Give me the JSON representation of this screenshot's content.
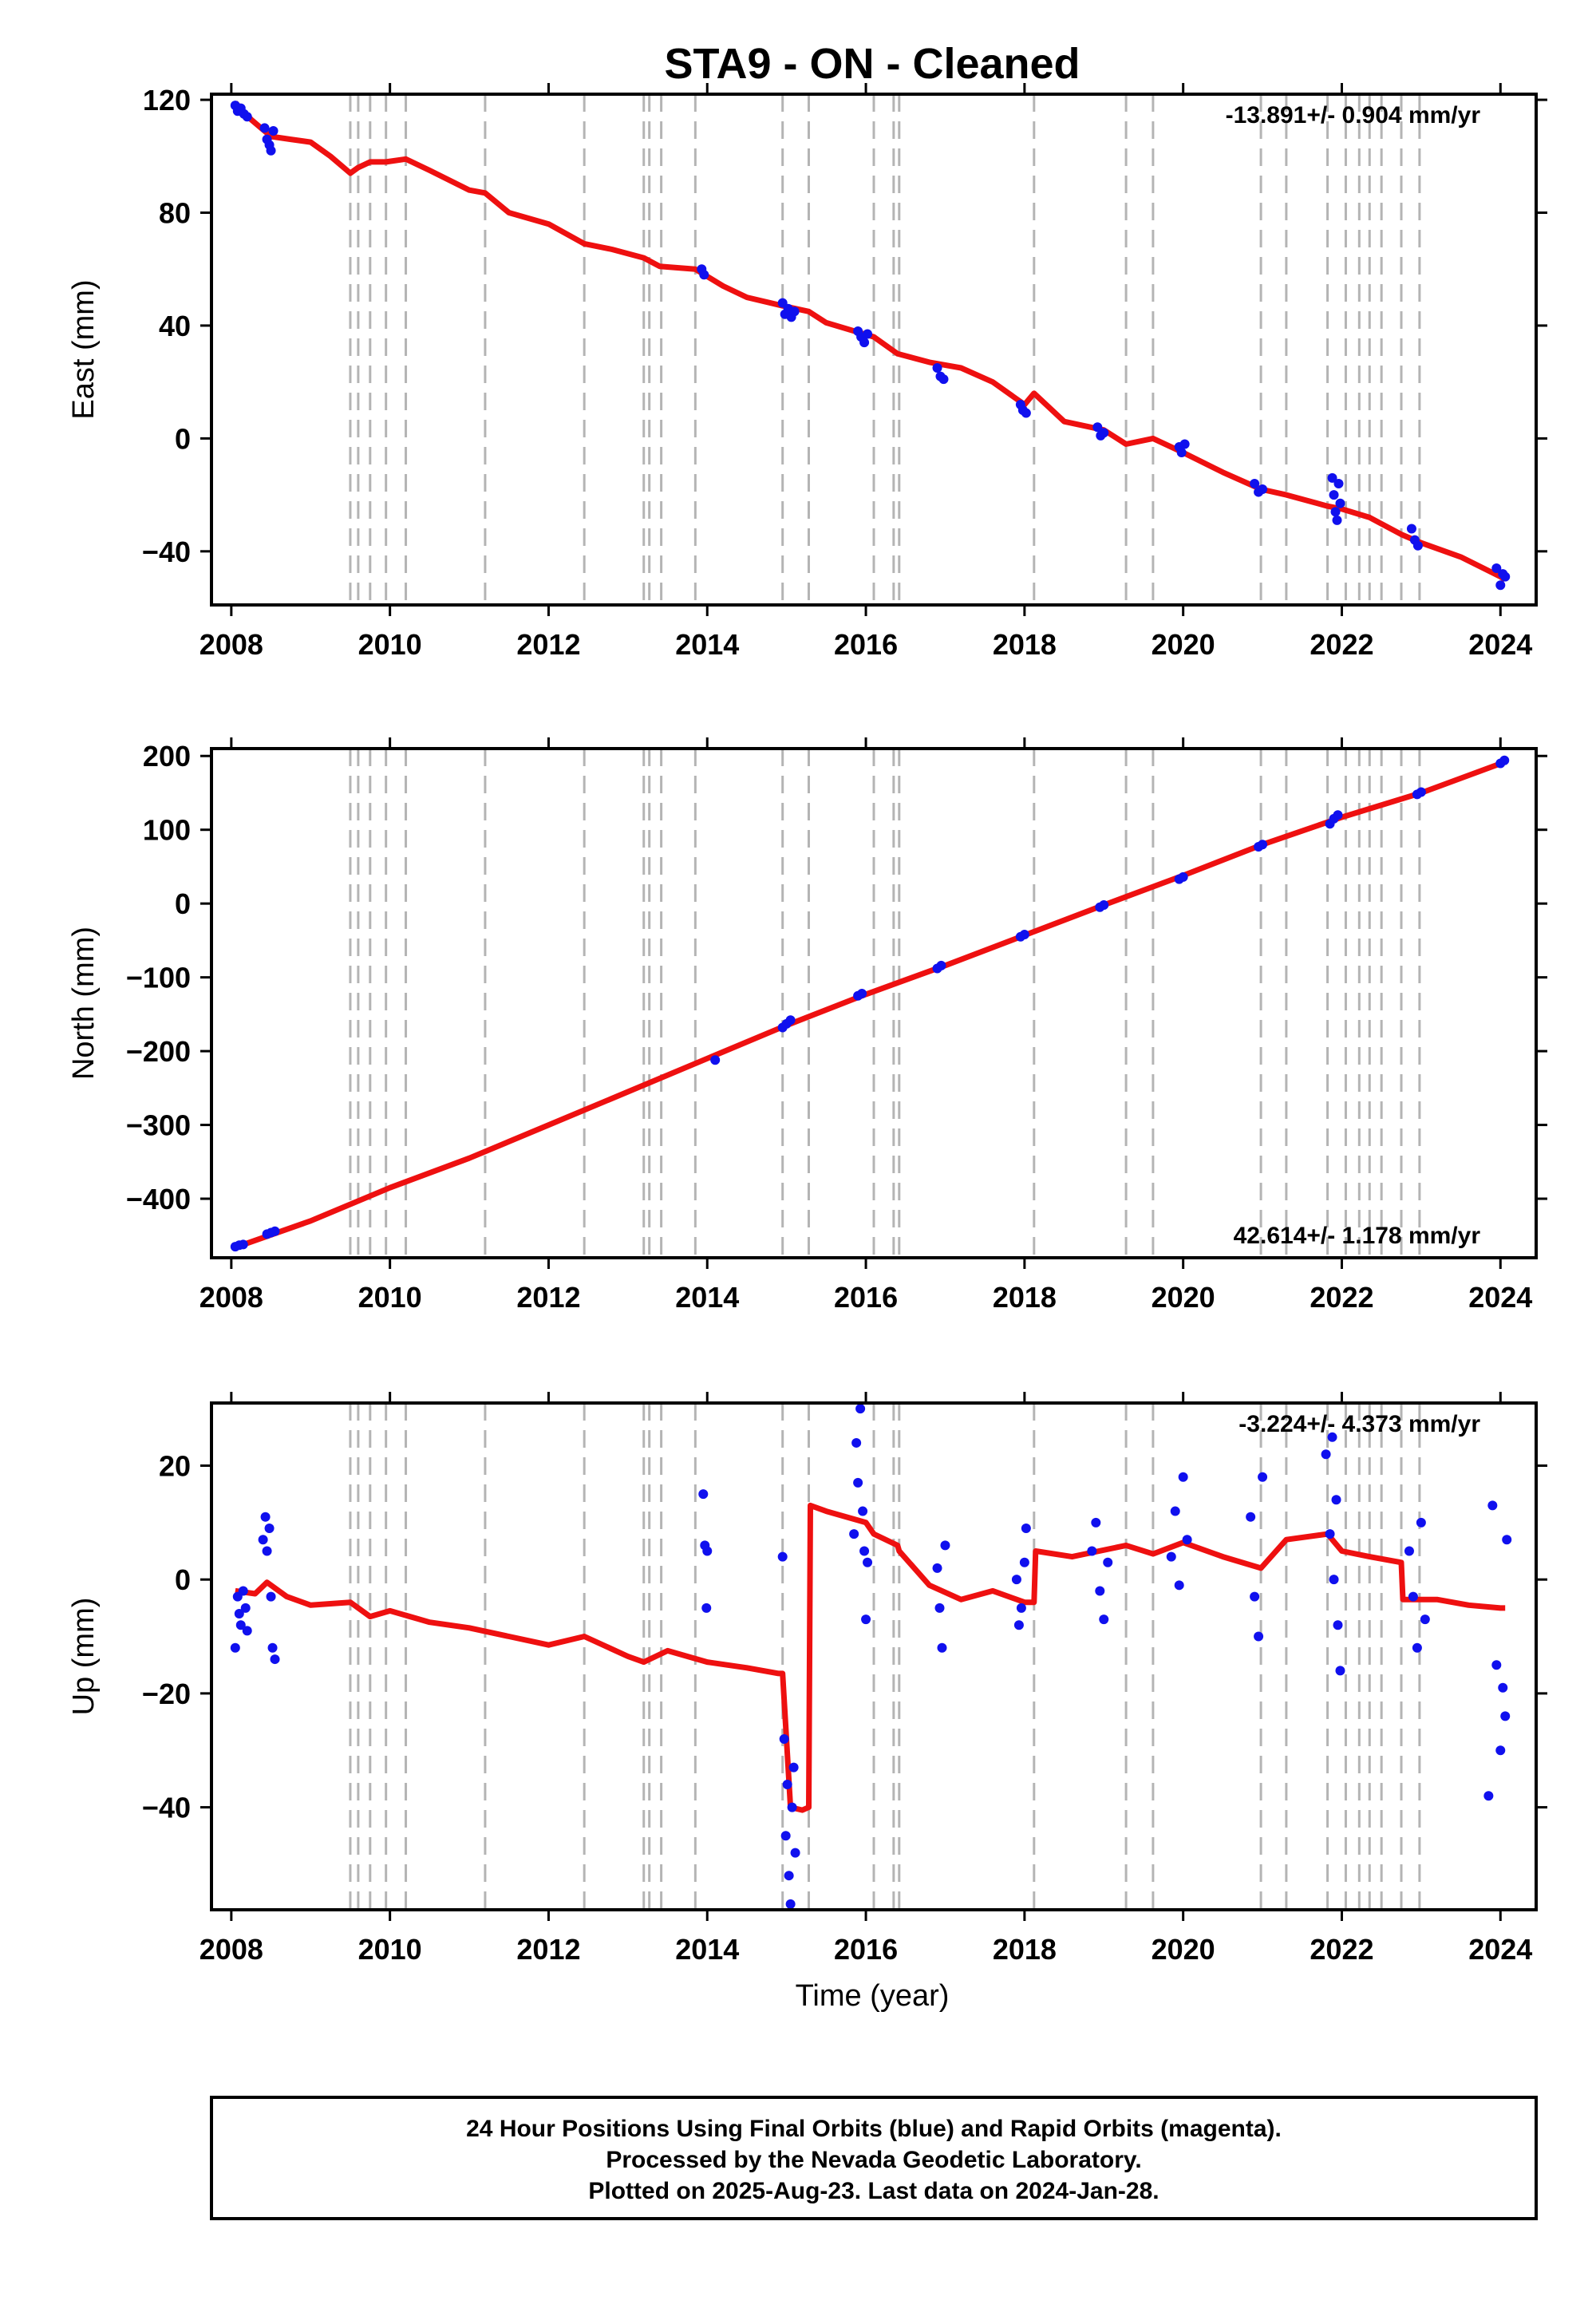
{
  "title": "STA9  - ON - Cleaned",
  "xlabel": "Time (year)",
  "colors": {
    "final_orbits": "#1010ee",
    "model": "#ee1010",
    "offsets": "#b4b4b4"
  },
  "footer": {
    "lines": [
      "24 Hour Positions Using Final Orbits (blue) and Rapid Orbits (magenta).",
      "Processed by the Nevada Geodetic Laboratory.",
      "Plotted on 2025-Aug-23. Last data on 2024-Jan-28."
    ]
  },
  "chart_data": [
    {
      "type": "scatter",
      "id": "east",
      "ylabel": "East (mm)",
      "xlim": [
        2007.75,
        2024.45
      ],
      "ylim": [
        -59,
        122
      ],
      "xticks": [
        2008,
        2010,
        2012,
        2014,
        2016,
        2018,
        2020,
        2022,
        2024
      ],
      "yticks": [
        -40,
        0,
        40,
        80,
        120
      ],
      "rate_label": "-13.891+/- 0.904 mm/yr",
      "rate_position": "top-right",
      "offset_lines": [
        2009.5,
        2009.6,
        2009.75,
        2009.95,
        2010.2,
        2011.2,
        2012.45,
        2013.2,
        2013.27,
        2013.42,
        2013.85,
        2014.95,
        2015.28,
        2016.1,
        2016.35,
        2016.42,
        2018.12,
        2019.28,
        2019.62,
        2020.98,
        2021.3,
        2021.82,
        2022.05,
        2022.22,
        2022.35,
        2022.5,
        2022.75,
        2022.98
      ],
      "series": [
        {
          "kind": "points",
          "x": [
            2008.05,
            2008.08,
            2008.12,
            2008.16,
            2008.2,
            2008.42,
            2008.45,
            2008.48,
            2008.5,
            2008.53,
            2013.93,
            2013.96,
            2014.95,
            2014.98,
            2015.02,
            2015.06,
            2015.1,
            2015.9,
            2015.94,
            2015.98,
            2016.02,
            2016.9,
            2016.94,
            2016.98,
            2017.95,
            2017.98,
            2018.02,
            2018.92,
            2018.96,
            2019.0,
            2019.95,
            2019.98,
            2020.02,
            2020.9,
            2020.95,
            2021.0,
            2021.88,
            2021.9,
            2021.92,
            2021.94,
            2021.96,
            2021.98,
            2022.88,
            2022.92,
            2022.96,
            2023.95,
            2024.0,
            2024.03,
            2024.06
          ],
          "y": [
            118,
            116,
            117,
            115,
            114,
            110,
            106,
            104,
            102,
            109,
            60,
            58,
            48,
            44,
            46,
            43,
            45,
            38,
            36,
            34,
            37,
            25,
            22,
            21,
            12,
            10,
            9,
            4,
            1,
            2,
            -3,
            -5,
            -2,
            -16,
            -19,
            -18,
            -14,
            -20,
            -26,
            -29,
            -16,
            -23,
            -32,
            -36,
            -38,
            -46,
            -52,
            -48,
            -49
          ]
        },
        {
          "kind": "line",
          "x": [
            2008.05,
            2008.25,
            2008.5,
            2008.75,
            2009.0,
            2009.25,
            2009.5,
            2009.6,
            2009.75,
            2009.95,
            2010.2,
            2010.5,
            2011.0,
            2011.2,
            2011.5,
            2012.0,
            2012.45,
            2012.8,
            2013.2,
            2013.4,
            2013.85,
            2014.2,
            2014.5,
            2014.95,
            2015.28,
            2015.5,
            2016.1,
            2016.4,
            2016.8,
            2017.2,
            2017.6,
            2018.0,
            2018.12,
            2018.5,
            2019.0,
            2019.28,
            2019.62,
            2020.0,
            2020.5,
            2020.98,
            2021.3,
            2021.82,
            2022.0,
            2022.35,
            2022.75,
            2023.0,
            2023.5,
            2024.0,
            2024.06
          ],
          "y": [
            119,
            113,
            107,
            106,
            105,
            100,
            94,
            96,
            98,
            98,
            99,
            95,
            88,
            87,
            80,
            76,
            69,
            67,
            64,
            61,
            60,
            54,
            50,
            47,
            45,
            41,
            36,
            30,
            27,
            25,
            20,
            12,
            16,
            6,
            3,
            -2,
            0,
            -5,
            -12,
            -18,
            -20,
            -24,
            -25,
            -28,
            -34,
            -37,
            -42,
            -49,
            -50
          ]
        }
      ]
    },
    {
      "type": "scatter",
      "id": "north",
      "ylabel": "North (mm)",
      "xlim": [
        2007.75,
        2024.45
      ],
      "ylim": [
        -480,
        210
      ],
      "xticks": [
        2008,
        2010,
        2012,
        2014,
        2016,
        2018,
        2020,
        2022,
        2024
      ],
      "yticks": [
        -400,
        -300,
        -200,
        -100,
        0,
        100,
        200
      ],
      "rate_label": "42.614+/- 1.178 mm/yr",
      "rate_position": "bottom-right",
      "offset_lines": [
        2009.5,
        2009.6,
        2009.75,
        2009.95,
        2010.2,
        2011.2,
        2012.45,
        2013.2,
        2013.27,
        2013.42,
        2013.85,
        2014.95,
        2015.28,
        2016.1,
        2016.35,
        2016.42,
        2018.12,
        2019.28,
        2019.62,
        2020.98,
        2021.3,
        2021.82,
        2022.05,
        2022.22,
        2022.35,
        2022.5,
        2022.75,
        2022.98
      ],
      "series": [
        {
          "kind": "points",
          "x": [
            2008.05,
            2008.1,
            2008.15,
            2008.45,
            2008.5,
            2008.55,
            2014.1,
            2014.95,
            2015.0,
            2015.05,
            2015.9,
            2015.95,
            2016.9,
            2016.95,
            2017.95,
            2018.0,
            2018.95,
            2019.0,
            2019.95,
            2020.0,
            2020.95,
            2021.0,
            2021.85,
            2021.9,
            2021.95,
            2022.95,
            2023.0,
            2024.0,
            2024.05
          ],
          "y": [
            -465,
            -463,
            -462,
            -448,
            -446,
            -444,
            -212,
            -168,
            -163,
            -158,
            -125,
            -122,
            -88,
            -84,
            -45,
            -42,
            -5,
            -2,
            33,
            36,
            77,
            80,
            108,
            115,
            120,
            148,
            151,
            190,
            194
          ]
        },
        {
          "kind": "line",
          "x": [
            2008.05,
            2009.0,
            2010.0,
            2011.0,
            2012.0,
            2013.0,
            2014.0,
            2015.0,
            2016.0,
            2017.0,
            2018.0,
            2019.0,
            2020.0,
            2021.0,
            2022.0,
            2023.0,
            2024.06
          ],
          "y": [
            -466,
            -430,
            -385,
            -345,
            -300,
            -255,
            -210,
            -165,
            -123,
            -84,
            -43,
            -2,
            38,
            80,
            117,
            150,
            192
          ]
        }
      ]
    },
    {
      "type": "scatter",
      "id": "up",
      "ylabel": "Up (mm)",
      "xlim": [
        2007.75,
        2024.45
      ],
      "ylim": [
        -58,
        31
      ],
      "xticks": [
        2008,
        2010,
        2012,
        2014,
        2016,
        2018,
        2020,
        2022,
        2024
      ],
      "yticks": [
        -40,
        -20,
        0,
        20
      ],
      "rate_label": "-3.224+/- 4.373 mm/yr",
      "rate_position": "top-right",
      "offset_lines": [
        2009.5,
        2009.6,
        2009.75,
        2009.95,
        2010.2,
        2011.2,
        2012.45,
        2013.2,
        2013.27,
        2013.42,
        2013.85,
        2014.95,
        2015.28,
        2016.1,
        2016.35,
        2016.42,
        2018.12,
        2019.28,
        2019.62,
        2020.98,
        2021.3,
        2021.82,
        2022.05,
        2022.22,
        2022.35,
        2022.5,
        2022.75,
        2022.98
      ],
      "series": [
        {
          "kind": "points",
          "x": [
            2008.05,
            2008.08,
            2008.1,
            2008.12,
            2008.15,
            2008.18,
            2008.2,
            2008.4,
            2008.43,
            2008.45,
            2008.48,
            2008.5,
            2008.52,
            2008.55,
            2013.95,
            2013.97,
            2013.99,
            2014.0,
            2014.95,
            2014.97,
            2014.99,
            2015.01,
            2015.03,
            2015.05,
            2015.07,
            2015.09,
            2015.11,
            2015.85,
            2015.88,
            2015.9,
            2015.93,
            2015.96,
            2015.98,
            2016.0,
            2016.02,
            2016.9,
            2016.93,
            2016.96,
            2017.0,
            2017.9,
            2017.93,
            2017.96,
            2018.0,
            2018.02,
            2018.85,
            2018.9,
            2018.95,
            2019.0,
            2019.05,
            2019.85,
            2019.9,
            2019.95,
            2020.0,
            2020.05,
            2020.85,
            2020.9,
            2020.95,
            2021.0,
            2021.8,
            2021.85,
            2021.88,
            2021.9,
            2021.93,
            2021.95,
            2021.98,
            2022.85,
            2022.9,
            2022.95,
            2023.0,
            2023.05,
            2023.85,
            2023.9,
            2023.95,
            2024.0,
            2024.03,
            2024.06,
            2024.08
          ],
          "y": [
            -12,
            -3,
            -6,
            -8,
            -2,
            -5,
            -9,
            7,
            11,
            5,
            9,
            -3,
            -12,
            -14,
            15,
            6,
            -5,
            5,
            4,
            -28,
            -45,
            -36,
            -52,
            -57,
            -40,
            -33,
            -48,
            8,
            24,
            17,
            30,
            12,
            5,
            -7,
            3,
            2,
            -5,
            -12,
            6,
            0,
            -8,
            -5,
            3,
            9,
            5,
            10,
            -2,
            -7,
            3,
            4,
            12,
            -1,
            18,
            7,
            11,
            -3,
            -10,
            18,
            22,
            8,
            25,
            0,
            14,
            -8,
            -16,
            5,
            -3,
            -12,
            10,
            -7,
            -38,
            13,
            -15,
            -30,
            -19,
            -24,
            7
          ]
        },
        {
          "kind": "line",
          "x": [
            2008.05,
            2008.3,
            2008.45,
            2008.7,
            2009.0,
            2009.5,
            2009.75,
            2010.0,
            2010.5,
            2011.0,
            2011.5,
            2012.0,
            2012.45,
            2013.0,
            2013.2,
            2013.5,
            2014.0,
            2014.5,
            2014.9,
            2014.95,
            2015.05,
            2015.2,
            2015.28,
            2015.3,
            2015.5,
            2016.0,
            2016.1,
            2016.4,
            2016.42,
            2016.8,
            2017.2,
            2017.6,
            2018.0,
            2018.12,
            2018.14,
            2018.6,
            2019.28,
            2019.62,
            2020.0,
            2020.5,
            2020.98,
            2021.3,
            2021.82,
            2022.0,
            2022.35,
            2022.75,
            2022.77,
            2023.2,
            2023.6,
            2024.0,
            2024.06
          ],
          "y": [
            -2,
            -2.5,
            -0.5,
            -3,
            -4.5,
            -4,
            -6.5,
            -5.5,
            -7.5,
            -8.5,
            -10,
            -11.5,
            -10,
            -13.5,
            -14.5,
            -12.5,
            -14.5,
            -15.5,
            -16.5,
            -16.5,
            -40,
            -40.5,
            -40,
            13,
            12,
            10,
            8,
            6,
            5,
            -1,
            -3.5,
            -2,
            -4,
            -4,
            5,
            4,
            6,
            4.5,
            6.5,
            4,
            2,
            7,
            8,
            5,
            4,
            3,
            -3.5,
            -3.5,
            -4.5,
            -5,
            -5
          ]
        }
      ]
    }
  ]
}
